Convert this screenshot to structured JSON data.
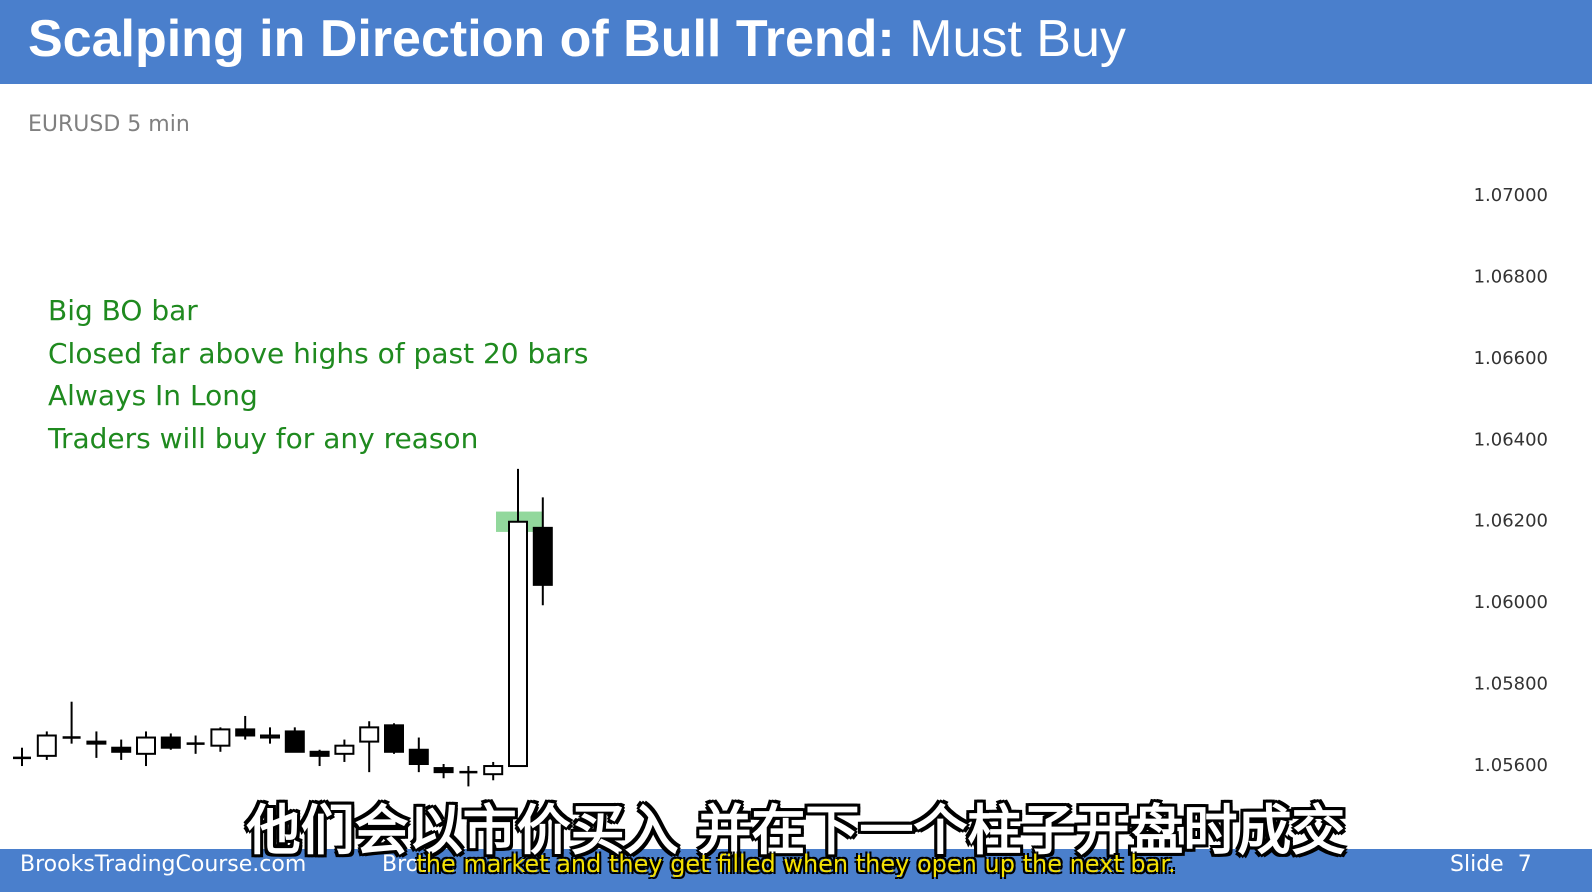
{
  "slide": {
    "title_bold": "Scalping in Direction of Bull Trend:",
    "title_light": "Must Buy",
    "subtitle": "EURUSD 5 min",
    "notes": [
      "Big BO bar",
      "Closed far above highs of past 20 bars",
      "Always In Long",
      "Traders will buy for any reason"
    ]
  },
  "footer": {
    "site": "BrooksTradingCourse.com",
    "mid": "Broo",
    "slide_label": "Slide",
    "slide_number": "7"
  },
  "subtitles": {
    "zh": "他们会以市价买入 并在下一个柱子开盘时成交",
    "en": "the market and they get filled when they open up the next bar."
  },
  "colors": {
    "header": "#4a7fcc",
    "notes_text": "#1f8a1f",
    "highlight": "#7fd18b"
  },
  "chart_data": {
    "type": "candlestick",
    "yticks": [
      "1.07000",
      "1.06800",
      "1.06600",
      "1.06400",
      "1.06200",
      "1.06000",
      "1.05800",
      "1.05600"
    ],
    "ylim": [
      1.0556,
      1.0702
    ],
    "highlight_bar_index": 20,
    "candles": [
      {
        "o": 1.05615,
        "h": 1.0564,
        "l": 1.05595,
        "c": 1.05615
      },
      {
        "o": 1.0562,
        "h": 1.0568,
        "l": 1.0561,
        "c": 1.0567
      },
      {
        "o": 1.05665,
        "h": 1.05753,
        "l": 1.0565,
        "c": 1.05665
      },
      {
        "o": 1.05655,
        "h": 1.0568,
        "l": 1.05615,
        "c": 1.0565
      },
      {
        "o": 1.0564,
        "h": 1.0566,
        "l": 1.0561,
        "c": 1.0563
      },
      {
        "o": 1.05625,
        "h": 1.0568,
        "l": 1.05595,
        "c": 1.05665
      },
      {
        "o": 1.05665,
        "h": 1.05675,
        "l": 1.05635,
        "c": 1.0564
      },
      {
        "o": 1.0565,
        "h": 1.0567,
        "l": 1.05625,
        "c": 1.0565
      },
      {
        "o": 1.05645,
        "h": 1.0569,
        "l": 1.0563,
        "c": 1.05685
      },
      {
        "o": 1.05685,
        "h": 1.05718,
        "l": 1.0566,
        "c": 1.0567
      },
      {
        "o": 1.05665,
        "h": 1.0569,
        "l": 1.0565,
        "c": 1.0567
      },
      {
        "o": 1.0568,
        "h": 1.0569,
        "l": 1.0564,
        "c": 1.0563
      },
      {
        "o": 1.0563,
        "h": 1.05635,
        "l": 1.05595,
        "c": 1.0562
      },
      {
        "o": 1.05625,
        "h": 1.0566,
        "l": 1.05605,
        "c": 1.05645
      },
      {
        "o": 1.05655,
        "h": 1.05705,
        "l": 1.0558,
        "c": 1.0569
      },
      {
        "o": 1.05695,
        "h": 1.057,
        "l": 1.05625,
        "c": 1.0563
      },
      {
        "o": 1.05635,
        "h": 1.05665,
        "l": 1.0558,
        "c": 1.056
      },
      {
        "o": 1.0559,
        "h": 1.056,
        "l": 1.05565,
        "c": 1.0558
      },
      {
        "o": 1.0558,
        "h": 1.05595,
        "l": 1.05545,
        "c": 1.0558
      },
      {
        "o": 1.05575,
        "h": 1.05605,
        "l": 1.0556,
        "c": 1.05595
      },
      {
        "o": 1.05595,
        "h": 1.06325,
        "l": 1.05595,
        "c": 1.06195
      },
      {
        "o": 1.0618,
        "h": 1.06255,
        "l": 1.0599,
        "c": 1.0604
      }
    ]
  }
}
